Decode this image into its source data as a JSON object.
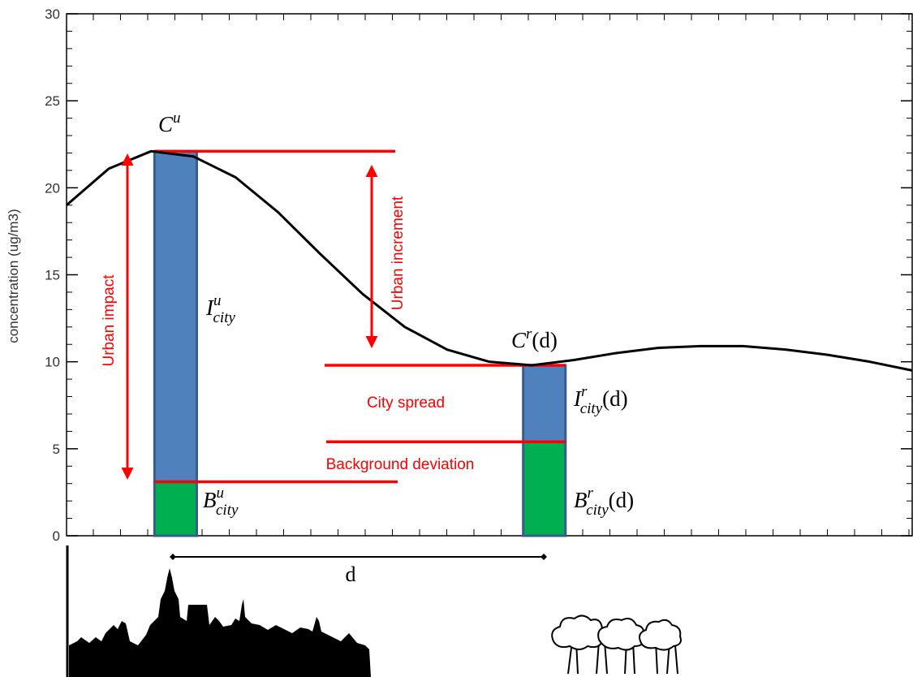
{
  "chart_data": {
    "type": "line",
    "ylabel": "concentration (ug/m3)",
    "ylim": [
      0,
      30
    ],
    "yticks": [
      0,
      5,
      10,
      15,
      20,
      25,
      30
    ],
    "xlim": [
      0,
      100
    ],
    "curve": {
      "color": "#000000",
      "x": [
        0,
        5,
        10,
        15,
        20,
        25,
        30,
        35,
        40,
        45,
        50,
        55,
        60,
        65,
        70,
        75,
        80,
        85,
        90,
        95,
        100
      ],
      "values": [
        19.0,
        21.1,
        22.1,
        21.8,
        20.6,
        18.6,
        16.2,
        13.9,
        12.0,
        10.7,
        10.0,
        9.8,
        10.1,
        10.5,
        10.8,
        10.9,
        10.9,
        10.7,
        10.4,
        10.0,
        9.5
      ]
    },
    "bars": [
      {
        "x": [
          10.4,
          15.4
        ],
        "segments": [
          {
            "value": 3.1,
            "color": "#00b050"
          },
          {
            "value": 19.0,
            "color": "#4f81bd"
          }
        ]
      },
      {
        "x": [
          54.0,
          59.0
        ],
        "segments": [
          {
            "value": 5.4,
            "color": "#00b050"
          },
          {
            "value": 4.4,
            "color": "#4f81bd"
          }
        ]
      }
    ],
    "labels": {
      "urban_peak": {
        "base": "C",
        "sup": "u"
      },
      "urban_impact_term": {
        "base": "I",
        "sup": "u",
        "sub": "city"
      },
      "urban_background_term": {
        "base": "B",
        "sup": "u",
        "sub": "city"
      },
      "rural_peak": {
        "base": "C",
        "sup": "r",
        "suffix": "(d)"
      },
      "rural_impact_term": {
        "base": "I",
        "sup": "r",
        "sub": "city",
        "suffix": "(d)"
      },
      "rural_background_term": {
        "base": "B",
        "sup": "r",
        "sub": "city",
        "suffix": "(d)"
      },
      "distance": "d"
    },
    "annotations": [
      "Urban impact",
      "Urban increment",
      "City spread",
      "Background deviation"
    ]
  }
}
